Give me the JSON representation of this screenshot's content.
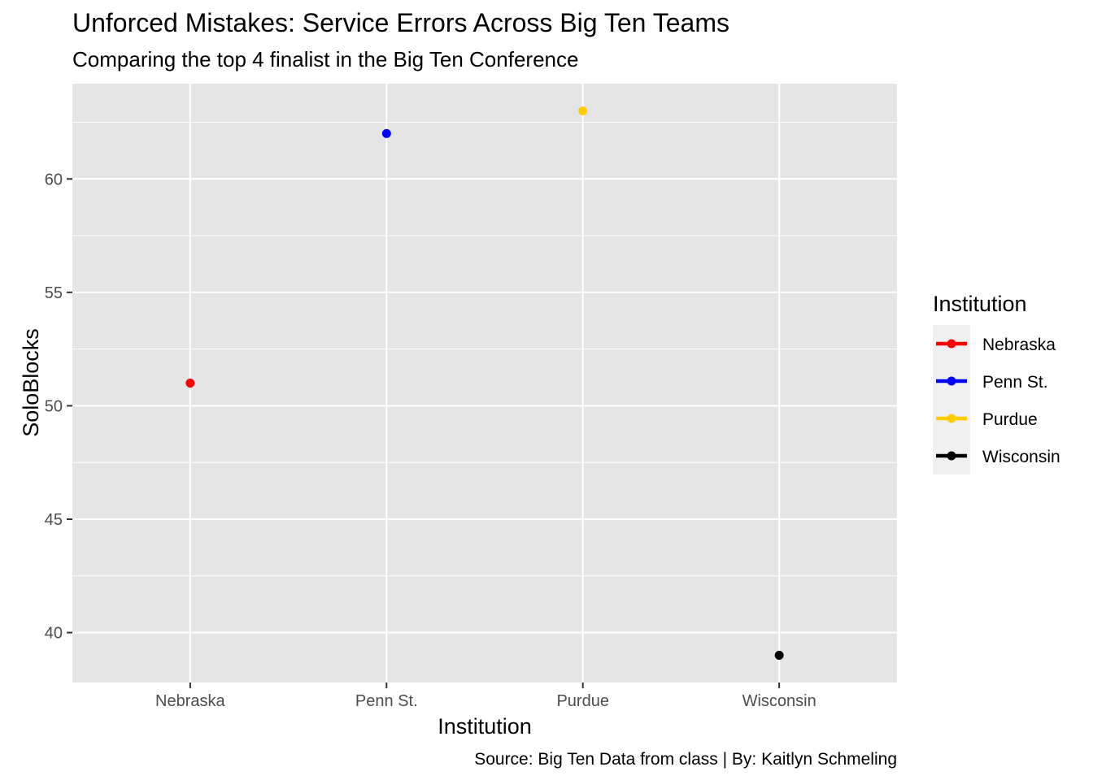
{
  "chart_data": {
    "type": "scatter",
    "title": "Unforced Mistakes: Service Errors Across Big Ten Teams",
    "subtitle": "Comparing the top 4 finalist in the Big Ten Conference",
    "caption": "Source: Big Ten Data from class | By: Kaitlyn Schmeling",
    "xlabel": "Institution",
    "ylabel": "SoloBlocks",
    "categories": [
      "Nebraska",
      "Penn St.",
      "Purdue",
      "Wisconsin"
    ],
    "values": [
      51,
      62,
      63,
      39
    ],
    "ylim": [
      37.8,
      64.2
    ],
    "y_ticks": [
      40,
      45,
      50,
      55,
      60
    ],
    "y_minor_ticks": [
      37.5,
      42.5,
      47.5,
      52.5,
      57.5,
      62.5
    ],
    "grid": true,
    "legend": {
      "title": "Institution",
      "placement": "right",
      "entries": [
        {
          "label": "Nebraska",
          "color": "#ff0000"
        },
        {
          "label": "Penn St.",
          "color": "#0000ff"
        },
        {
          "label": "Purdue",
          "color": "#ffcc00"
        },
        {
          "label": "Wisconsin",
          "color": "#000000"
        }
      ]
    },
    "colors": {
      "panel_background": "#e5e5e5",
      "grid": "#ffffff",
      "legend_key_background": "#f0f0f0",
      "tick_label": "#4d4d4d",
      "tick_mark": "#333333"
    }
  }
}
